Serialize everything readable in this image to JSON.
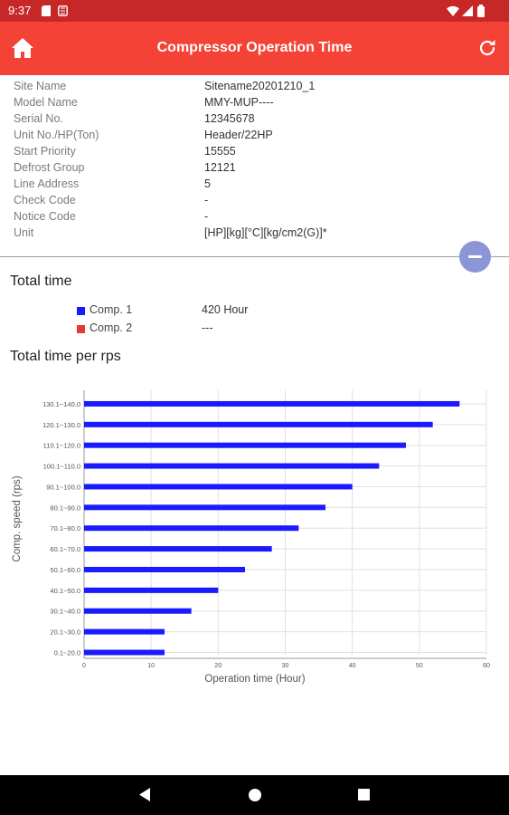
{
  "status_bar": {
    "time": "9:37",
    "icons": [
      "sd-card-icon",
      "mobile-data-icon",
      "wifi-icon",
      "signal-icon",
      "battery-icon"
    ]
  },
  "app_bar": {
    "title": "Compressor Operation Time",
    "left_icon": "home-icon",
    "right_icon": "refresh-icon",
    "color": "#f44336"
  },
  "info": [
    {
      "label": "Site Name",
      "value": "Sitename20201210_1"
    },
    {
      "label": "Model Name",
      "value": "MMY-MUP----"
    },
    {
      "label": "Serial No.",
      "value": "12345678"
    },
    {
      "label": "Unit No./HP(Ton)",
      "value": "Header/22HP"
    },
    {
      "label": "Start Priority",
      "value": "15555"
    },
    {
      "label": "Defrost Group",
      "value": "12121"
    },
    {
      "label": "Line Address",
      "value": "5"
    },
    {
      "label": "Check Code",
      "value": "-"
    },
    {
      "label": "Notice Code",
      "value": "-"
    },
    {
      "label": "Unit",
      "value": "[HP][kg][°C][kg/cm2(G)]*"
    }
  ],
  "collapse_button": {
    "icon": "minus-icon",
    "color": "#8c95d6"
  },
  "total_time": {
    "title": "Total time",
    "items": [
      {
        "name": "Comp. 1",
        "value": "420 Hour",
        "color": "#1a1aff"
      },
      {
        "name": "Comp. 2",
        "value": "---",
        "color": "#e53935"
      }
    ]
  },
  "per_rps": {
    "title": "Total time per rps"
  },
  "chart_data": {
    "type": "bar",
    "orientation": "horizontal",
    "categories": [
      "0.1~20.0",
      "20.1~30.0",
      "30.1~40.0",
      "40.1~50.0",
      "50.1~60.0",
      "60.1~70.0",
      "70.1~80.0",
      "80.1~90.0",
      "90.1~100.0",
      "100.1~110.0",
      "110.1~120.0",
      "120.1~130.0",
      "130.1~140.0"
    ],
    "series": [
      {
        "values": [
          12,
          12,
          16,
          20,
          24,
          28,
          32,
          36,
          40,
          44,
          48,
          52,
          56
        ],
        "color": "#1a1aff"
      }
    ],
    "xlabel": "Operation time (Hour)",
    "ylabel": "Comp. speed (rps)",
    "xlim": [
      0,
      60
    ],
    "xticks": [
      0,
      10,
      20,
      30,
      40,
      50,
      60
    ],
    "grid": true
  },
  "nav_bar": {
    "buttons": [
      "back-icon",
      "home-icon",
      "recents-icon"
    ]
  }
}
